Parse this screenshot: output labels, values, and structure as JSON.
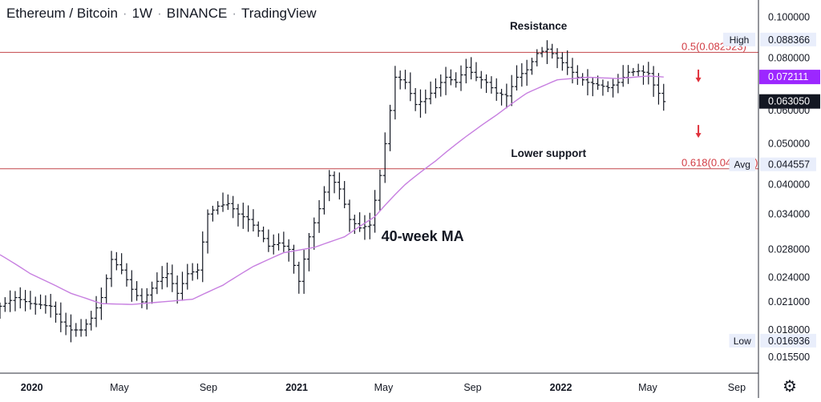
{
  "header": {
    "symbol": "Ethereum / Bitcoin",
    "interval": "1W",
    "exchange": "BINANCE",
    "brand": "TradingView"
  },
  "colors": {
    "candle": "#131722",
    "ma_line": "#c77fe0",
    "level_line": "#c2454a",
    "level_text": "#d13b43",
    "arrow": "#e0313b",
    "ma_badge": "#9c27ff",
    "last_badge": "#131722",
    "chip_bg": "#e9eefb"
  },
  "chart_data": {
    "type": "ohlc",
    "title": "Ethereum / Bitcoin · 1W · BINANCE · TradingView",
    "price_scale": "log",
    "ylim": [
      0.0142,
      0.11
    ],
    "y_ticks": [
      "0.100000",
      "0.080000",
      "0.060000",
      "0.050000",
      "0.040000",
      "0.034000",
      "0.028000",
      "0.024000",
      "0.021000",
      "0.018000",
      "0.015500"
    ],
    "x_ticks": [
      "2020",
      "May",
      "Sep",
      "2021",
      "May",
      "Sep",
      "2022",
      "May",
      "Sep"
    ],
    "x_tick_dates": [
      "2020-01-01",
      "2020-05-01",
      "2020-09-01",
      "2021-01-01",
      "2021-05-01",
      "2021-09-01",
      "2022-01-01",
      "2022-05-01",
      "2022-09-01"
    ],
    "x_range": [
      "2019-11-18",
      "2022-10-01"
    ],
    "anchors": [
      [
        "2019-11-18",
        0.0205
      ],
      [
        "2019-12-09",
        0.0215
      ],
      [
        "2019-12-30",
        0.0208
      ],
      [
        "2020-01-27",
        0.0205
      ],
      [
        "2020-02-10",
        0.0188
      ],
      [
        "2020-02-24",
        0.018
      ],
      [
        "2020-03-09",
        0.018
      ],
      [
        "2020-03-23",
        0.0192
      ],
      [
        "2020-04-06",
        0.0215
      ],
      [
        "2020-04-20",
        0.0265
      ],
      [
        "2020-05-04",
        0.025
      ],
      [
        "2020-05-18",
        0.0225
      ],
      [
        "2020-06-01",
        0.021
      ],
      [
        "2020-06-22",
        0.0235
      ],
      [
        "2020-07-06",
        0.0245
      ],
      [
        "2020-07-20",
        0.022
      ],
      [
        "2020-08-03",
        0.0245
      ],
      [
        "2020-08-17",
        0.025
      ],
      [
        "2020-08-31",
        0.034
      ],
      [
        "2020-09-14",
        0.0355
      ],
      [
        "2020-09-28",
        0.036
      ],
      [
        "2020-10-12",
        0.034
      ],
      [
        "2020-10-26",
        0.033
      ],
      [
        "2020-11-09",
        0.031
      ],
      [
        "2020-11-23",
        0.0285
      ],
      [
        "2020-12-07",
        0.029
      ],
      [
        "2020-12-21",
        0.028
      ],
      [
        "2021-01-04",
        0.0235
      ],
      [
        "2021-01-18",
        0.03
      ],
      [
        "2021-02-01",
        0.035
      ],
      [
        "2021-02-15",
        0.042
      ],
      [
        "2021-03-01",
        0.039
      ],
      [
        "2021-03-15",
        0.033
      ],
      [
        "2021-03-29",
        0.0315
      ],
      [
        "2021-04-12",
        0.032
      ],
      [
        "2021-04-26",
        0.042
      ],
      [
        "2021-05-03",
        0.05
      ],
      [
        "2021-05-17",
        0.072
      ],
      [
        "2021-05-31",
        0.07
      ],
      [
        "2021-06-14",
        0.062
      ],
      [
        "2021-06-28",
        0.064
      ],
      [
        "2021-07-12",
        0.068
      ],
      [
        "2021-07-26",
        0.072
      ],
      [
        "2021-08-09",
        0.07
      ],
      [
        "2021-08-23",
        0.076
      ],
      [
        "2021-09-06",
        0.072
      ],
      [
        "2021-09-20",
        0.07
      ],
      [
        "2021-10-04",
        0.066
      ],
      [
        "2021-10-18",
        0.065
      ],
      [
        "2021-11-01",
        0.072
      ],
      [
        "2021-11-15",
        0.075
      ],
      [
        "2021-11-29",
        0.082
      ],
      [
        "2021-12-13",
        0.084
      ],
      [
        "2021-12-27",
        0.08
      ],
      [
        "2022-01-10",
        0.076
      ],
      [
        "2022-01-24",
        0.072
      ],
      [
        "2022-02-07",
        0.07
      ],
      [
        "2022-02-21",
        0.069
      ],
      [
        "2022-03-07",
        0.068
      ],
      [
        "2022-03-21",
        0.07
      ],
      [
        "2022-04-04",
        0.074
      ],
      [
        "2022-04-18",
        0.0745
      ],
      [
        "2022-05-02",
        0.0735
      ],
      [
        "2022-05-09",
        0.069
      ],
      [
        "2022-05-23",
        0.063
      ]
    ],
    "ma_anchors": [
      [
        "2019-11-18",
        0.0272
      ],
      [
        "2019-12-30",
        0.0245
      ],
      [
        "2020-02-24",
        0.022
      ],
      [
        "2020-04-06",
        0.0208
      ],
      [
        "2020-05-18",
        0.0207
      ],
      [
        "2020-06-29",
        0.021
      ],
      [
        "2020-08-10",
        0.0213
      ],
      [
        "2020-09-21",
        0.023
      ],
      [
        "2020-11-02",
        0.0255
      ],
      [
        "2020-12-14",
        0.0275
      ],
      [
        "2021-01-25",
        0.0283
      ],
      [
        "2021-03-08",
        0.03
      ],
      [
        "2021-04-19",
        0.0335
      ],
      [
        "2021-05-31",
        0.04
      ],
      [
        "2021-07-12",
        0.0455
      ],
      [
        "2021-08-23",
        0.052
      ],
      [
        "2021-10-04",
        0.0585
      ],
      [
        "2021-11-15",
        0.066
      ],
      [
        "2021-12-27",
        0.071
      ],
      [
        "2022-02-07",
        0.072
      ],
      [
        "2022-03-21",
        0.0715
      ],
      [
        "2022-05-02",
        0.0725
      ],
      [
        "2022-05-23",
        0.0721
      ]
    ],
    "levels": [
      {
        "label": "0.5(0.082523)",
        "value": 0.082523
      },
      {
        "label": "0.618(0.043584)",
        "value": 0.043584
      }
    ],
    "annotations": [
      {
        "text": "Resistance",
        "date": "2021-12-01",
        "value": 0.0935
      },
      {
        "text": "Lower support",
        "date": "2021-12-15",
        "value": 0.0465
      },
      {
        "text": "40-week MA",
        "date": "2021-06-24",
        "value": 0.0293
      }
    ],
    "arrows": [
      {
        "date": "2022-07-10",
        "value": 0.0725
      },
      {
        "date": "2022-07-10",
        "value": 0.0535
      }
    ],
    "price_labels": [
      {
        "tag": "High",
        "value": "0.088366",
        "price": 0.088366,
        "style": "chip"
      },
      {
        "tag": "",
        "value": "0.072111",
        "price": 0.072111,
        "style": "ma"
      },
      {
        "tag": "",
        "value": "0.063050",
        "price": 0.06305,
        "style": "last"
      },
      {
        "tag": "Avg",
        "value": "0.044557",
        "price": 0.044557,
        "style": "chip"
      },
      {
        "tag": "Low",
        "value": "0.016936",
        "price": 0.016936,
        "style": "chip"
      }
    ]
  }
}
